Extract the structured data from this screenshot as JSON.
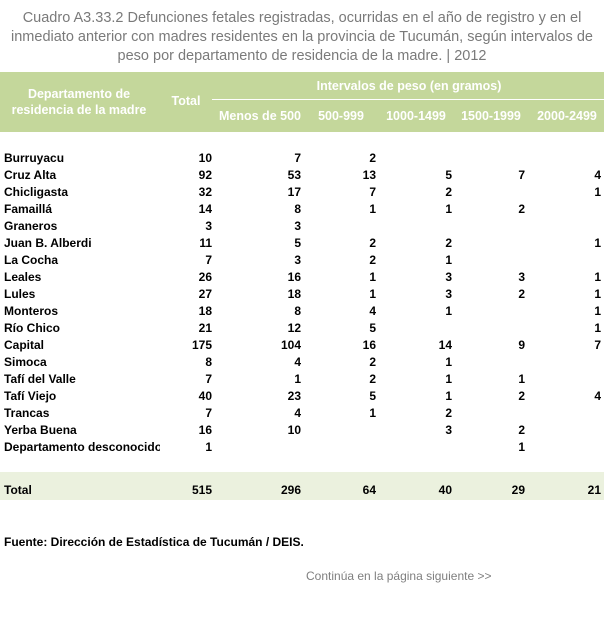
{
  "title": "Cuadro A3.33.2 Defunciones fetales registradas, ocurridas en el año de registro y en el inmediato anterior con madres residentes en la provincia de Tucumán, según intervalos de peso por departamento de residencia de la madre. | 2012",
  "header": {
    "departamento": "Departamento de residencia de la madre",
    "total": "Total",
    "intervalos": "Intervalos de peso (en gramos)",
    "columns": [
      "Menos de 500",
      "500-999",
      "1000-1499",
      "1500-1999",
      "2000-2499"
    ]
  },
  "rows": [
    {
      "name": "Burruyacu",
      "values": [
        "10",
        "7",
        "2",
        "",
        "",
        ""
      ]
    },
    {
      "name": "Cruz Alta",
      "values": [
        "92",
        "53",
        "13",
        "5",
        "7",
        "4"
      ]
    },
    {
      "name": "Chicligasta",
      "values": [
        "32",
        "17",
        "7",
        "2",
        "",
        "1"
      ]
    },
    {
      "name": "Famaillá",
      "values": [
        "14",
        "8",
        "1",
        "1",
        "2",
        ""
      ]
    },
    {
      "name": "Graneros",
      "values": [
        "3",
        "3",
        "",
        "",
        "",
        ""
      ]
    },
    {
      "name": "Juan B. Alberdi",
      "values": [
        "11",
        "5",
        "2",
        "2",
        "",
        "1"
      ]
    },
    {
      "name": "La Cocha",
      "values": [
        "7",
        "3",
        "2",
        "1",
        "",
        ""
      ]
    },
    {
      "name": "Leales",
      "values": [
        "26",
        "16",
        "1",
        "3",
        "3",
        "1"
      ]
    },
    {
      "name": "Lules",
      "values": [
        "27",
        "18",
        "1",
        "3",
        "2",
        "1"
      ]
    },
    {
      "name": "Monteros",
      "values": [
        "18",
        "8",
        "4",
        "1",
        "",
        "1"
      ]
    },
    {
      "name": "Río Chico",
      "values": [
        "21",
        "12",
        "5",
        "",
        "",
        "1"
      ]
    },
    {
      "name": "Capital",
      "values": [
        "175",
        "104",
        "16",
        "14",
        "9",
        "7"
      ]
    },
    {
      "name": "Simoca",
      "values": [
        "8",
        "4",
        "2",
        "1",
        "",
        ""
      ]
    },
    {
      "name": "Tafí del Valle",
      "values": [
        "7",
        "1",
        "2",
        "1",
        "1",
        ""
      ]
    },
    {
      "name": "Tafí Viejo",
      "values": [
        "40",
        "23",
        "5",
        "1",
        "2",
        "4"
      ]
    },
    {
      "name": "Trancas",
      "values": [
        "7",
        "4",
        "1",
        "2",
        "",
        ""
      ]
    },
    {
      "name": "Yerba Buena",
      "values": [
        "16",
        "10",
        "",
        "3",
        "2",
        ""
      ]
    },
    {
      "name": "Departamento desconocido",
      "values": [
        "1",
        "",
        "",
        "",
        "1",
        ""
      ]
    }
  ],
  "total_row": {
    "name": "Total",
    "values": [
      "515",
      "296",
      "64",
      "40",
      "29",
      "21"
    ]
  },
  "source": "Fuente: Dirección de Estadística de Tucumán / DEIS.",
  "continuation": "Continúa en la página siguiente >>"
}
